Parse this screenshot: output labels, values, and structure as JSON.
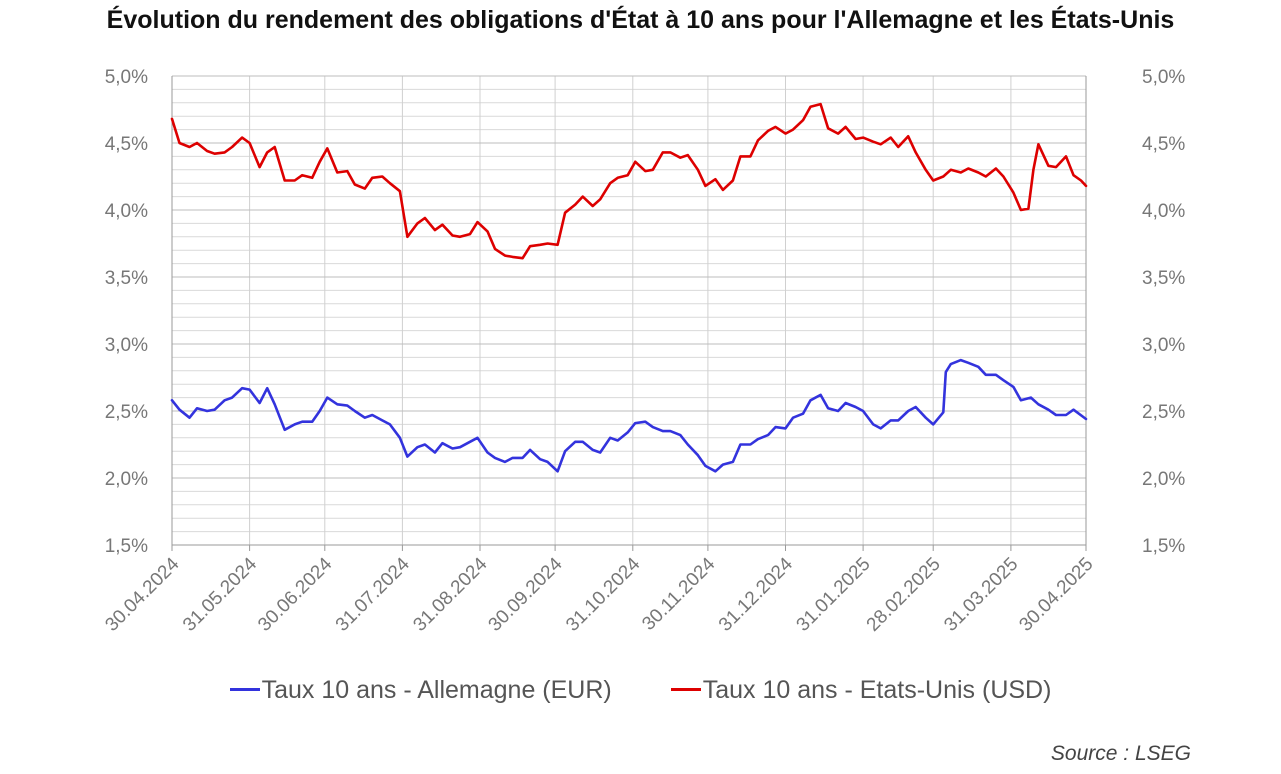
{
  "chart_data": {
    "type": "line",
    "title": "Évolution du rendement des obligations d'État à 10 ans pour l'Allemagne et les États-Unis",
    "source": "Source : LSEG",
    "xlabel": "",
    "ylabel": "",
    "ylim": [
      1.5,
      5.0
    ],
    "y_tick_labels": [
      "1,5%",
      "2,0%",
      "2,5%",
      "3,0%",
      "3,5%",
      "4,0%",
      "4,5%",
      "5,0%"
    ],
    "y_tick_values": [
      1.5,
      2.0,
      2.5,
      3.0,
      3.5,
      4.0,
      4.5,
      5.0
    ],
    "secondary_axis": "right, same scale",
    "x_tick_labels": [
      "30.04.2024",
      "31.05.2024",
      "30.06.2024",
      "31.07.2024",
      "31.08.2024",
      "30.09.2024",
      "31.10.2024",
      "30.11.2024",
      "31.12.2024",
      "31.01.2025",
      "28.02.2025",
      "31.03.2025",
      "30.04.2025"
    ],
    "x_tick_dates": [
      "2024-04-30",
      "2024-05-31",
      "2024-06-30",
      "2024-07-31",
      "2024-08-31",
      "2024-09-30",
      "2024-10-31",
      "2024-11-30",
      "2024-12-31",
      "2025-01-31",
      "2025-02-28",
      "2025-03-31",
      "2025-04-30"
    ],
    "grid": true,
    "legend_position": "bottom",
    "series": [
      {
        "name": "Taux 10 ans - Allemagne (EUR)",
        "color": "#3333dd",
        "points": [
          [
            "2024-04-30",
            2.58
          ],
          [
            "2024-05-03",
            2.51
          ],
          [
            "2024-05-07",
            2.45
          ],
          [
            "2024-05-10",
            2.52
          ],
          [
            "2024-05-14",
            2.5
          ],
          [
            "2024-05-17",
            2.51
          ],
          [
            "2024-05-21",
            2.58
          ],
          [
            "2024-05-24",
            2.6
          ],
          [
            "2024-05-28",
            2.67
          ],
          [
            "2024-05-31",
            2.66
          ],
          [
            "2024-06-04",
            2.56
          ],
          [
            "2024-06-07",
            2.67
          ],
          [
            "2024-06-10",
            2.55
          ],
          [
            "2024-06-14",
            2.36
          ],
          [
            "2024-06-18",
            2.4
          ],
          [
            "2024-06-21",
            2.42
          ],
          [
            "2024-06-25",
            2.42
          ],
          [
            "2024-06-28",
            2.5
          ],
          [
            "2024-07-01",
            2.6
          ],
          [
            "2024-07-05",
            2.55
          ],
          [
            "2024-07-09",
            2.54
          ],
          [
            "2024-07-12",
            2.5
          ],
          [
            "2024-07-16",
            2.45
          ],
          [
            "2024-07-19",
            2.47
          ],
          [
            "2024-07-23",
            2.43
          ],
          [
            "2024-07-26",
            2.4
          ],
          [
            "2024-07-30",
            2.3
          ],
          [
            "2024-08-02",
            2.16
          ],
          [
            "2024-08-06",
            2.23
          ],
          [
            "2024-08-09",
            2.25
          ],
          [
            "2024-08-13",
            2.19
          ],
          [
            "2024-08-16",
            2.26
          ],
          [
            "2024-08-20",
            2.22
          ],
          [
            "2024-08-23",
            2.23
          ],
          [
            "2024-08-27",
            2.27
          ],
          [
            "2024-08-30",
            2.3
          ],
          [
            "2024-09-03",
            2.19
          ],
          [
            "2024-09-06",
            2.15
          ],
          [
            "2024-09-10",
            2.12
          ],
          [
            "2024-09-13",
            2.15
          ],
          [
            "2024-09-17",
            2.15
          ],
          [
            "2024-09-20",
            2.21
          ],
          [
            "2024-09-24",
            2.14
          ],
          [
            "2024-09-27",
            2.12
          ],
          [
            "2024-10-01",
            2.05
          ],
          [
            "2024-10-04",
            2.2
          ],
          [
            "2024-10-08",
            2.27
          ],
          [
            "2024-10-11",
            2.27
          ],
          [
            "2024-10-15",
            2.21
          ],
          [
            "2024-10-18",
            2.19
          ],
          [
            "2024-10-22",
            2.3
          ],
          [
            "2024-10-25",
            2.28
          ],
          [
            "2024-10-29",
            2.34
          ],
          [
            "2024-11-01",
            2.41
          ],
          [
            "2024-11-05",
            2.42
          ],
          [
            "2024-11-08",
            2.38
          ],
          [
            "2024-11-12",
            2.35
          ],
          [
            "2024-11-15",
            2.35
          ],
          [
            "2024-11-19",
            2.32
          ],
          [
            "2024-11-22",
            2.25
          ],
          [
            "2024-11-26",
            2.17
          ],
          [
            "2024-11-29",
            2.09
          ],
          [
            "2024-12-03",
            2.05
          ],
          [
            "2024-12-06",
            2.1
          ],
          [
            "2024-12-10",
            2.12
          ],
          [
            "2024-12-13",
            2.25
          ],
          [
            "2024-12-17",
            2.25
          ],
          [
            "2024-12-20",
            2.29
          ],
          [
            "2024-12-24",
            2.32
          ],
          [
            "2024-12-27",
            2.38
          ],
          [
            "2024-12-31",
            2.37
          ],
          [
            "2025-01-03",
            2.45
          ],
          [
            "2025-01-07",
            2.48
          ],
          [
            "2025-01-10",
            2.58
          ],
          [
            "2025-01-14",
            2.62
          ],
          [
            "2025-01-17",
            2.52
          ],
          [
            "2025-01-21",
            2.5
          ],
          [
            "2025-01-24",
            2.56
          ],
          [
            "2025-01-28",
            2.53
          ],
          [
            "2025-01-31",
            2.5
          ],
          [
            "2025-02-04",
            2.4
          ],
          [
            "2025-02-07",
            2.37
          ],
          [
            "2025-02-11",
            2.43
          ],
          [
            "2025-02-14",
            2.43
          ],
          [
            "2025-02-18",
            2.5
          ],
          [
            "2025-02-21",
            2.53
          ],
          [
            "2025-02-25",
            2.45
          ],
          [
            "2025-02-28",
            2.4
          ],
          [
            "2025-03-04",
            2.49
          ],
          [
            "2025-03-05",
            2.79
          ],
          [
            "2025-03-07",
            2.85
          ],
          [
            "2025-03-11",
            2.88
          ],
          [
            "2025-03-14",
            2.86
          ],
          [
            "2025-03-18",
            2.83
          ],
          [
            "2025-03-21",
            2.77
          ],
          [
            "2025-03-25",
            2.77
          ],
          [
            "2025-03-28",
            2.73
          ],
          [
            "2025-04-01",
            2.68
          ],
          [
            "2025-04-04",
            2.58
          ],
          [
            "2025-04-08",
            2.6
          ],
          [
            "2025-04-11",
            2.55
          ],
          [
            "2025-04-15",
            2.51
          ],
          [
            "2025-04-18",
            2.47
          ],
          [
            "2025-04-22",
            2.47
          ],
          [
            "2025-04-25",
            2.51
          ],
          [
            "2025-04-30",
            2.44
          ]
        ]
      },
      {
        "name": "Taux 10 ans - Etats-Unis (USD)",
        "color": "#dd0000",
        "points": [
          [
            "2024-04-30",
            4.68
          ],
          [
            "2024-05-03",
            4.5
          ],
          [
            "2024-05-07",
            4.47
          ],
          [
            "2024-05-10",
            4.5
          ],
          [
            "2024-05-14",
            4.44
          ],
          [
            "2024-05-17",
            4.42
          ],
          [
            "2024-05-21",
            4.43
          ],
          [
            "2024-05-24",
            4.47
          ],
          [
            "2024-05-28",
            4.54
          ],
          [
            "2024-05-31",
            4.5
          ],
          [
            "2024-06-04",
            4.32
          ],
          [
            "2024-06-07",
            4.43
          ],
          [
            "2024-06-10",
            4.47
          ],
          [
            "2024-06-14",
            4.22
          ],
          [
            "2024-06-18",
            4.22
          ],
          [
            "2024-06-21",
            4.26
          ],
          [
            "2024-06-25",
            4.24
          ],
          [
            "2024-06-28",
            4.36
          ],
          [
            "2024-07-01",
            4.46
          ],
          [
            "2024-07-05",
            4.28
          ],
          [
            "2024-07-09",
            4.29
          ],
          [
            "2024-07-12",
            4.19
          ],
          [
            "2024-07-16",
            4.16
          ],
          [
            "2024-07-19",
            4.24
          ],
          [
            "2024-07-23",
            4.25
          ],
          [
            "2024-07-26",
            4.2
          ],
          [
            "2024-07-30",
            4.14
          ],
          [
            "2024-08-02",
            3.8
          ],
          [
            "2024-08-06",
            3.9
          ],
          [
            "2024-08-09",
            3.94
          ],
          [
            "2024-08-13",
            3.85
          ],
          [
            "2024-08-16",
            3.89
          ],
          [
            "2024-08-20",
            3.81
          ],
          [
            "2024-08-23",
            3.8
          ],
          [
            "2024-08-27",
            3.82
          ],
          [
            "2024-08-30",
            3.91
          ],
          [
            "2024-09-03",
            3.84
          ],
          [
            "2024-09-06",
            3.71
          ],
          [
            "2024-09-10",
            3.66
          ],
          [
            "2024-09-13",
            3.65
          ],
          [
            "2024-09-17",
            3.64
          ],
          [
            "2024-09-20",
            3.73
          ],
          [
            "2024-09-24",
            3.74
          ],
          [
            "2024-09-27",
            3.75
          ],
          [
            "2024-10-01",
            3.74
          ],
          [
            "2024-10-04",
            3.98
          ],
          [
            "2024-10-08",
            4.04
          ],
          [
            "2024-10-11",
            4.1
          ],
          [
            "2024-10-15",
            4.03
          ],
          [
            "2024-10-18",
            4.08
          ],
          [
            "2024-10-22",
            4.2
          ],
          [
            "2024-10-25",
            4.24
          ],
          [
            "2024-10-29",
            4.26
          ],
          [
            "2024-11-01",
            4.36
          ],
          [
            "2024-11-05",
            4.29
          ],
          [
            "2024-11-08",
            4.3
          ],
          [
            "2024-11-12",
            4.43
          ],
          [
            "2024-11-15",
            4.43
          ],
          [
            "2024-11-19",
            4.39
          ],
          [
            "2024-11-22",
            4.41
          ],
          [
            "2024-11-26",
            4.3
          ],
          [
            "2024-11-29",
            4.18
          ],
          [
            "2024-12-03",
            4.23
          ],
          [
            "2024-12-06",
            4.15
          ],
          [
            "2024-12-10",
            4.22
          ],
          [
            "2024-12-13",
            4.4
          ],
          [
            "2024-12-17",
            4.4
          ],
          [
            "2024-12-20",
            4.52
          ],
          [
            "2024-12-24",
            4.59
          ],
          [
            "2024-12-27",
            4.62
          ],
          [
            "2024-12-31",
            4.57
          ],
          [
            "2025-01-03",
            4.6
          ],
          [
            "2025-01-07",
            4.67
          ],
          [
            "2025-01-10",
            4.77
          ],
          [
            "2025-01-14",
            4.79
          ],
          [
            "2025-01-17",
            4.61
          ],
          [
            "2025-01-21",
            4.57
          ],
          [
            "2025-01-24",
            4.62
          ],
          [
            "2025-01-28",
            4.53
          ],
          [
            "2025-01-31",
            4.54
          ],
          [
            "2025-02-04",
            4.51
          ],
          [
            "2025-02-07",
            4.49
          ],
          [
            "2025-02-11",
            4.54
          ],
          [
            "2025-02-14",
            4.47
          ],
          [
            "2025-02-18",
            4.55
          ],
          [
            "2025-02-21",
            4.43
          ],
          [
            "2025-02-25",
            4.3
          ],
          [
            "2025-02-28",
            4.22
          ],
          [
            "2025-03-04",
            4.25
          ],
          [
            "2025-03-07",
            4.3
          ],
          [
            "2025-03-11",
            4.28
          ],
          [
            "2025-03-14",
            4.31
          ],
          [
            "2025-03-18",
            4.28
          ],
          [
            "2025-03-21",
            4.25
          ],
          [
            "2025-03-25",
            4.31
          ],
          [
            "2025-03-28",
            4.25
          ],
          [
            "2025-04-01",
            4.13
          ],
          [
            "2025-04-04",
            4.0
          ],
          [
            "2025-04-07",
            4.01
          ],
          [
            "2025-04-09",
            4.3
          ],
          [
            "2025-04-11",
            4.49
          ],
          [
            "2025-04-15",
            4.33
          ],
          [
            "2025-04-18",
            4.32
          ],
          [
            "2025-04-22",
            4.4
          ],
          [
            "2025-04-25",
            4.26
          ],
          [
            "2025-04-28",
            4.22
          ],
          [
            "2025-04-30",
            4.18
          ]
        ]
      }
    ]
  }
}
